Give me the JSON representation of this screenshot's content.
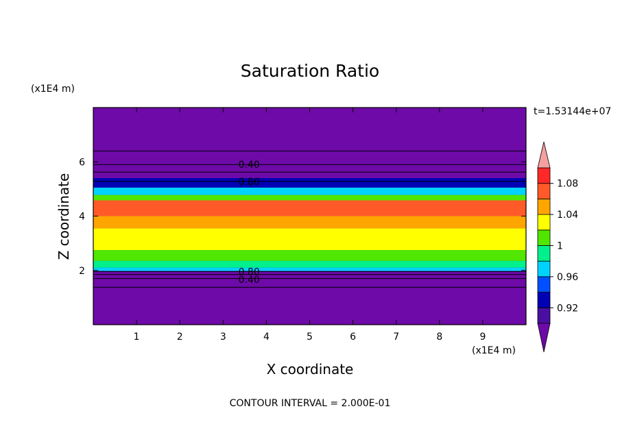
{
  "chart_data": {
    "type": "heatmap",
    "title": "Saturation Ratio",
    "xlabel": "X coordinate",
    "ylabel": "Z coordinate",
    "x_units": "(x1E4 m)",
    "y_units": "(x1E4 m)",
    "time_label": "t=1.53144e+07",
    "footer": "CONTOUR INTERVAL = 2.000E-01",
    "xlim": [
      0,
      10
    ],
    "ylim": [
      0,
      8
    ],
    "x_ticks": [
      1,
      2,
      3,
      4,
      5,
      6,
      7,
      8,
      9
    ],
    "x_tick_labels": [
      "1",
      "2",
      "3",
      "4",
      "5",
      "6",
      "7",
      "8",
      "9"
    ],
    "y_ticks": [
      2,
      4,
      6
    ],
    "y_tick_labels": [
      "2",
      "4",
      "6"
    ],
    "colorbar": {
      "levels": [
        0.9,
        0.92,
        0.94,
        0.96,
        0.98,
        1.0,
        1.02,
        1.04,
        1.06,
        1.08,
        1.1
      ],
      "colors": [
        "#4a0fa0",
        "#0000b4",
        "#0050ff",
        "#00d2ff",
        "#00f08c",
        "#50e600",
        "#ffff00",
        "#ffa500",
        "#ff5a28",
        "#ff2828"
      ],
      "under_color": "#6e0aa8",
      "over_color": "#f5a0a0",
      "tick_values": [
        0.92,
        0.96,
        1.0,
        1.04,
        1.08
      ],
      "tick_labels": [
        "0.92",
        "0.96",
        "1",
        "1.04",
        "1.08"
      ]
    },
    "bands": [
      {
        "z_bottom": 5.05,
        "z_top": 5.4,
        "value": 0.93
      },
      {
        "z_bottom": 4.78,
        "z_top": 5.05,
        "value": 0.96
      },
      {
        "z_bottom": 4.58,
        "z_top": 4.78,
        "value": 1.01
      },
      {
        "z_bottom": 4.0,
        "z_top": 4.58,
        "value": 1.07
      },
      {
        "z_bottom": 3.55,
        "z_top": 4.0,
        "value": 1.05
      },
      {
        "z_bottom": 2.75,
        "z_top": 3.55,
        "value": 1.03
      },
      {
        "z_bottom": 2.35,
        "z_top": 2.75,
        "value": 1.01
      },
      {
        "z_bottom": 2.1,
        "z_top": 2.35,
        "value": 0.99
      },
      {
        "z_bottom": 1.98,
        "z_top": 2.1,
        "value": 0.96
      }
    ],
    "contour_lines": [
      {
        "value": 0.2,
        "z": 6.4
      },
      {
        "value": 0.4,
        "z": 5.9
      },
      {
        "value": 0.6,
        "z": 5.62
      },
      {
        "value": 0.8,
        "z": 5.28
      },
      {
        "value": 0.8,
        "z": 1.96
      },
      {
        "value": 0.6,
        "z": 1.85
      },
      {
        "value": 0.4,
        "z": 1.7
      },
      {
        "value": 0.2,
        "z": 1.38
      }
    ],
    "contour_labels": [
      {
        "text": "0.40",
        "x": 3.6,
        "z": 5.9
      },
      {
        "text": "0.80",
        "x": 3.6,
        "z": 5.28
      },
      {
        "text": "0.80",
        "x": 3.6,
        "z": 1.96
      },
      {
        "text": "0.40",
        "x": 3.6,
        "z": 1.67
      }
    ]
  }
}
